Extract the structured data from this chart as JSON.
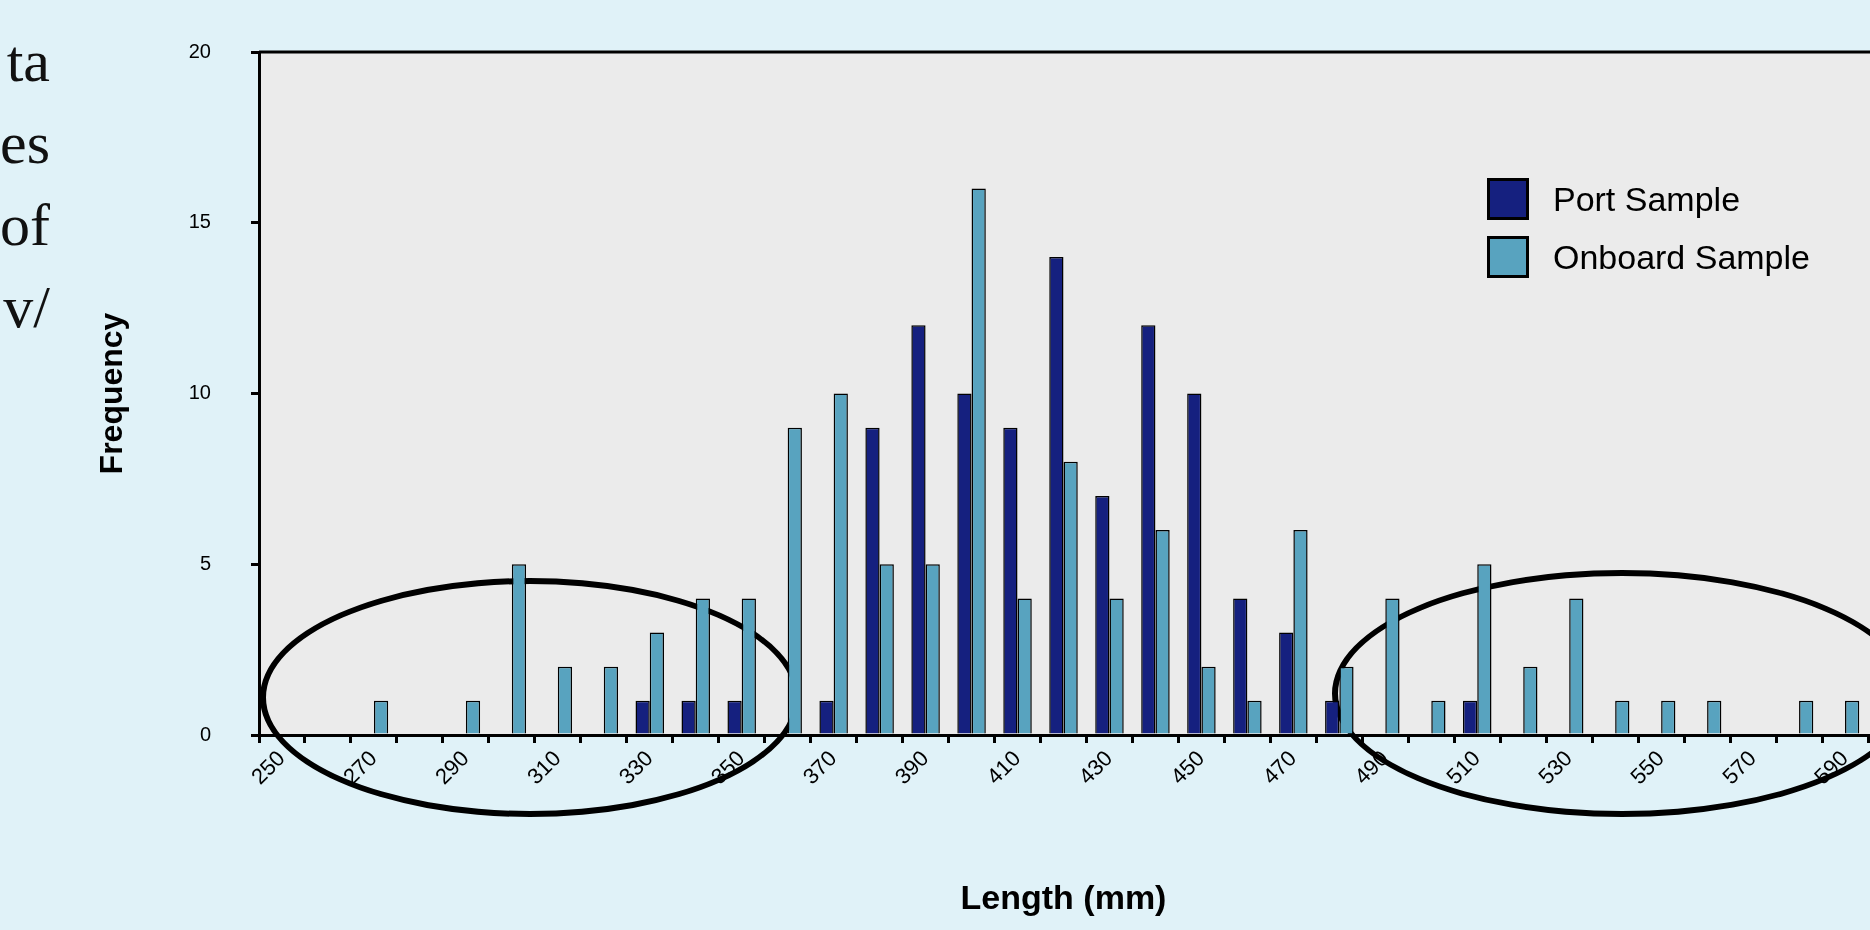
{
  "chart_data": {
    "type": "bar",
    "xlabel": "Length (mm)",
    "ylabel": "Frequency",
    "categories": [
      "250",
      null,
      "270",
      null,
      "290",
      null,
      "310",
      null,
      "330",
      null,
      "350",
      null,
      "370",
      null,
      "390",
      null,
      "410",
      null,
      "430",
      null,
      "450",
      null,
      "470",
      null,
      "490",
      null,
      "510",
      null,
      "530",
      null,
      "550",
      null,
      "570",
      null,
      "590"
    ],
    "series": [
      {
        "name": "Port Sample",
        "color": "#15207f",
        "values": [
          0,
          0,
          0,
          0,
          0,
          0,
          0,
          0,
          1,
          1,
          1,
          0,
          1,
          9,
          12,
          10,
          9,
          14,
          7,
          12,
          10,
          4,
          3,
          1,
          0,
          0,
          1,
          0,
          0,
          0,
          0,
          0,
          0,
          0,
          0
        ]
      },
      {
        "name": "Onboard Sample",
        "color": "#58a3bf",
        "values": [
          0,
          0,
          1,
          0,
          1,
          5,
          2,
          2,
          3,
          4,
          4,
          9,
          10,
          5,
          5,
          16,
          4,
          8,
          4,
          6,
          2,
          1,
          6,
          2,
          4,
          1,
          5,
          2,
          4,
          1,
          1,
          1,
          0,
          1,
          1
        ]
      }
    ],
    "ylim": [
      0,
      20
    ],
    "yticks": [
      0,
      5,
      10,
      15,
      20
    ],
    "legend": "top right",
    "annotations": [
      "ta",
      "es",
      "of",
      "v/"
    ]
  }
}
